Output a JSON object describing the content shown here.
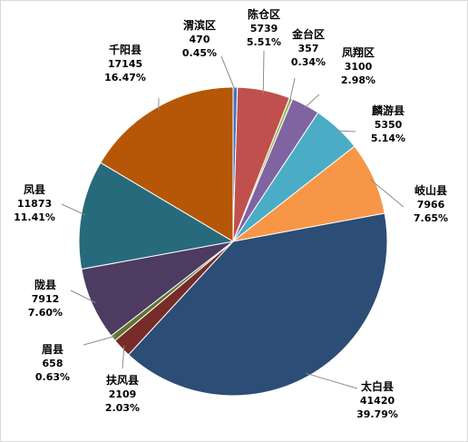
{
  "chart_data": {
    "type": "pie",
    "title": "",
    "start_angle_deg": 90,
    "direction": "clockwise",
    "slices": [
      {
        "name": "渭滨区",
        "value": 470,
        "percent": "0.45%",
        "color": "#4472C4"
      },
      {
        "name": "陈仓区",
        "value": 5739,
        "percent": "5.51%",
        "color": "#C0504D"
      },
      {
        "name": "金台区",
        "value": 357,
        "percent": "0.34%",
        "color": "#9BBB59"
      },
      {
        "name": "凤翔区",
        "value": 3100,
        "percent": "2.98%",
        "color": "#8064A2"
      },
      {
        "name": "麟游县",
        "value": 5350,
        "percent": "5.14%",
        "color": "#4BACC6"
      },
      {
        "name": "岐山县",
        "value": 7966,
        "percent": "7.65%",
        "color": "#F79646"
      },
      {
        "name": "太白县",
        "value": 41420,
        "percent": "39.79%",
        "color": "#2C4D75"
      },
      {
        "name": "扶风县",
        "value": 2109,
        "percent": "2.03%",
        "color": "#772C2A"
      },
      {
        "name": "眉县",
        "value": 658,
        "percent": "0.63%",
        "color": "#5F7530"
      },
      {
        "name": "陇县",
        "value": 7912,
        "percent": "7.60%",
        "color": "#4D3B62"
      },
      {
        "name": "凤县",
        "value": 11873,
        "percent": "11.41%",
        "color": "#276A7C"
      },
      {
        "name": "千阳县",
        "value": 17145,
        "percent": "16.47%",
        "color": "#B65708"
      }
    ]
  }
}
